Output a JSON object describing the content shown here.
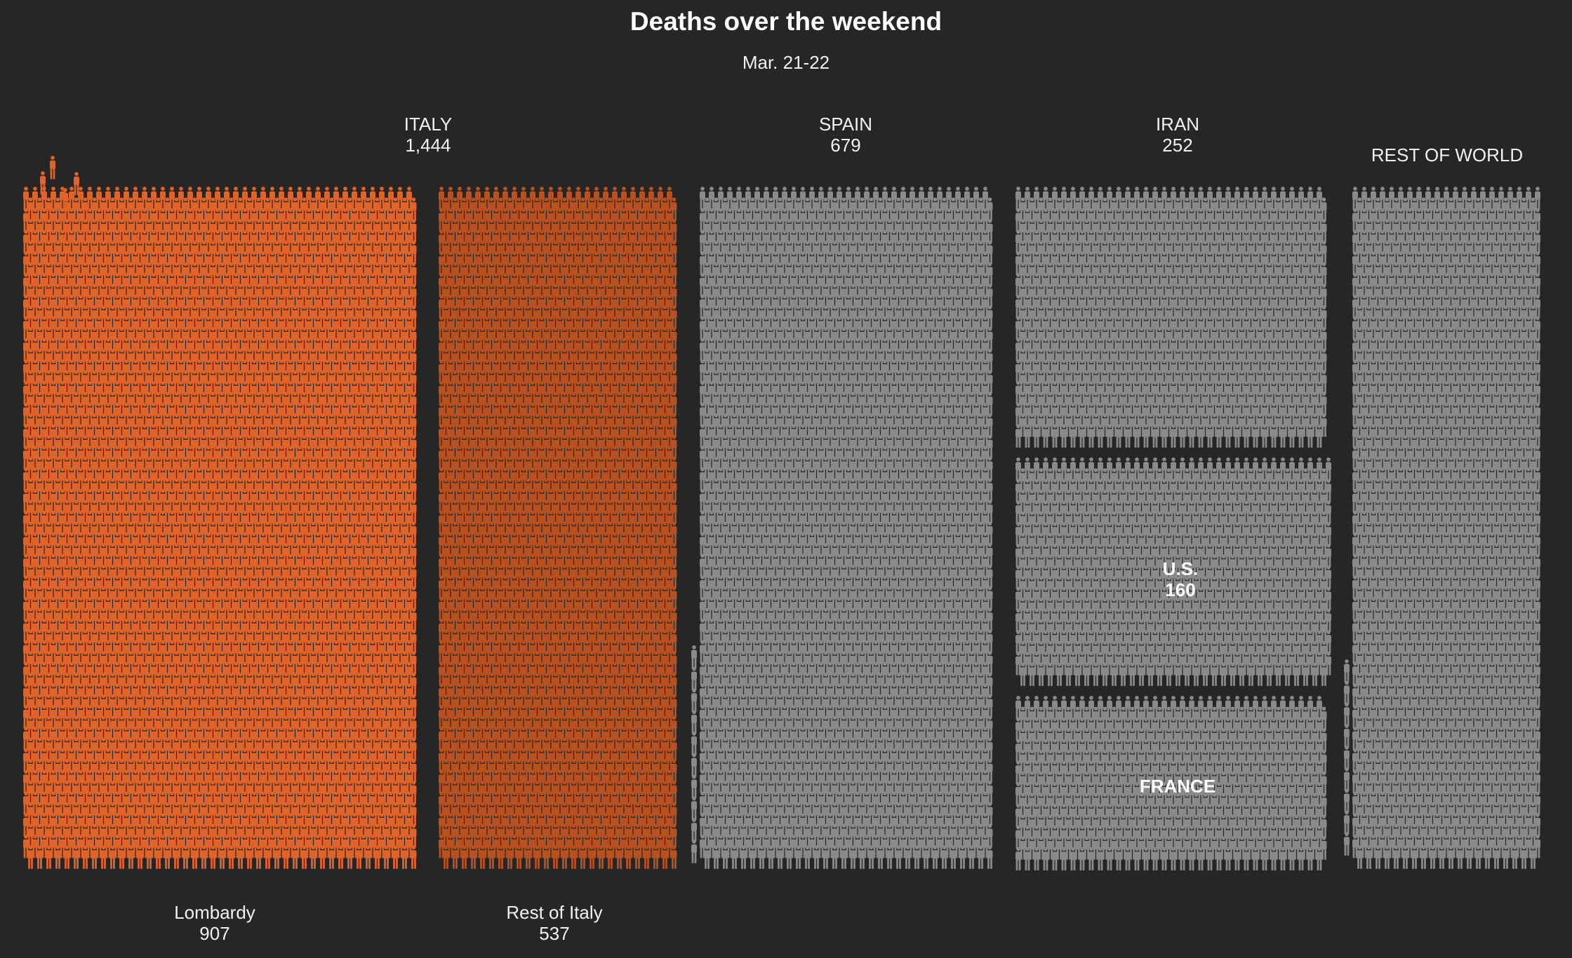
{
  "title": "Deaths over the weekend",
  "subtitle": "Mar. 21-22",
  "colors": {
    "background": "#262626",
    "lombardy": "#e0632a",
    "rest_of_italy": "#b8511f",
    "other": "#8a8a8a"
  },
  "chart_data": {
    "type": "pictogram",
    "unit": "one figure = one death",
    "groups": [
      {
        "key": "italy",
        "label": "ITALY",
        "value_label": "1,444",
        "value": 1444,
        "subgroups": [
          {
            "key": "lombardy",
            "label": "Lombardy",
            "value_label": "907",
            "value": 907
          },
          {
            "key": "rest_of_italy",
            "label": "Rest of Italy",
            "value_label": "537",
            "value": 537
          }
        ]
      },
      {
        "key": "spain",
        "label": "SPAIN",
        "value_label": "679",
        "value": 679
      },
      {
        "key": "iran",
        "label": "IRAN",
        "value_label": "252",
        "value": 252
      },
      {
        "key": "us",
        "label": "U.S.",
        "value_label": "160",
        "value": 160
      },
      {
        "key": "france",
        "label": "FRANCE",
        "value_label": "",
        "value": null
      },
      {
        "key": "rest_of_world",
        "label": "REST OF WORLD",
        "value_label": "",
        "value": null
      }
    ]
  }
}
